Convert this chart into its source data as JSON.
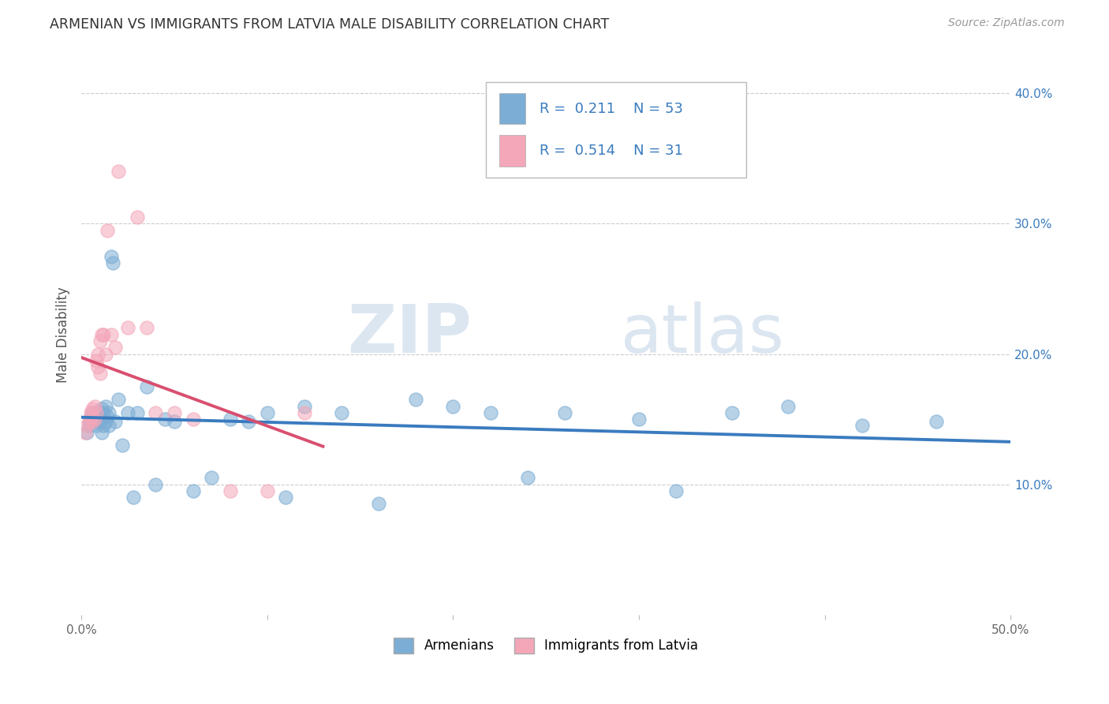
{
  "title": "ARMENIAN VS IMMIGRANTS FROM LATVIA MALE DISABILITY CORRELATION CHART",
  "source": "Source: ZipAtlas.com",
  "ylabel": "Male Disability",
  "xlim": [
    0.0,
    0.5
  ],
  "ylim": [
    0.0,
    0.43
  ],
  "yticks_right": [
    0.1,
    0.2,
    0.3,
    0.4
  ],
  "ytick_labels_right": [
    "10.0%",
    "20.0%",
    "30.0%",
    "40.0%"
  ],
  "armenian_R": 0.211,
  "armenian_N": 53,
  "latvia_R": 0.514,
  "latvia_N": 31,
  "armenian_color": "#7cadd4",
  "latvia_color": "#f4a7b9",
  "armenian_line_color": "#3a7bbf",
  "latvia_line_color": "#d94f70",
  "grid_color": "#cccccc",
  "background_color": "#ffffff",
  "watermark_zip": "ZIP",
  "watermark_atlas": "atlas",
  "legend_label_armenian": "Armenians",
  "legend_label_latvia": "Immigrants from Latvia",
  "armenian_x": [
    0.003,
    0.004,
    0.005,
    0.006,
    0.006,
    0.007,
    0.007,
    0.008,
    0.008,
    0.009,
    0.01,
    0.01,
    0.011,
    0.011,
    0.012,
    0.012,
    0.013,
    0.013,
    0.014,
    0.015,
    0.015,
    0.016,
    0.017,
    0.018,
    0.02,
    0.022,
    0.025,
    0.028,
    0.03,
    0.035,
    0.04,
    0.045,
    0.05,
    0.06,
    0.07,
    0.08,
    0.09,
    0.1,
    0.11,
    0.12,
    0.14,
    0.16,
    0.18,
    0.2,
    0.22,
    0.24,
    0.26,
    0.3,
    0.32,
    0.35,
    0.38,
    0.42,
    0.46
  ],
  "armenian_y": [
    0.14,
    0.145,
    0.148,
    0.15,
    0.155,
    0.148,
    0.152,
    0.145,
    0.155,
    0.15,
    0.148,
    0.155,
    0.14,
    0.158,
    0.145,
    0.155,
    0.148,
    0.16,
    0.152,
    0.145,
    0.155,
    0.275,
    0.27,
    0.148,
    0.165,
    0.13,
    0.155,
    0.09,
    0.155,
    0.175,
    0.1,
    0.15,
    0.148,
    0.095,
    0.105,
    0.15,
    0.148,
    0.155,
    0.09,
    0.16,
    0.155,
    0.085,
    0.165,
    0.16,
    0.155,
    0.105,
    0.155,
    0.15,
    0.095,
    0.155,
    0.16,
    0.145,
    0.148
  ],
  "latvia_x": [
    0.002,
    0.003,
    0.004,
    0.005,
    0.005,
    0.006,
    0.006,
    0.007,
    0.007,
    0.008,
    0.008,
    0.009,
    0.009,
    0.01,
    0.01,
    0.011,
    0.012,
    0.013,
    0.014,
    0.016,
    0.018,
    0.02,
    0.025,
    0.03,
    0.035,
    0.04,
    0.05,
    0.06,
    0.08,
    0.1,
    0.12
  ],
  "latvia_y": [
    0.14,
    0.145,
    0.148,
    0.152,
    0.155,
    0.148,
    0.158,
    0.15,
    0.16,
    0.155,
    0.195,
    0.19,
    0.2,
    0.185,
    0.21,
    0.215,
    0.215,
    0.2,
    0.295,
    0.215,
    0.205,
    0.34,
    0.22,
    0.305,
    0.22,
    0.155,
    0.155,
    0.15,
    0.095,
    0.095,
    0.155
  ]
}
